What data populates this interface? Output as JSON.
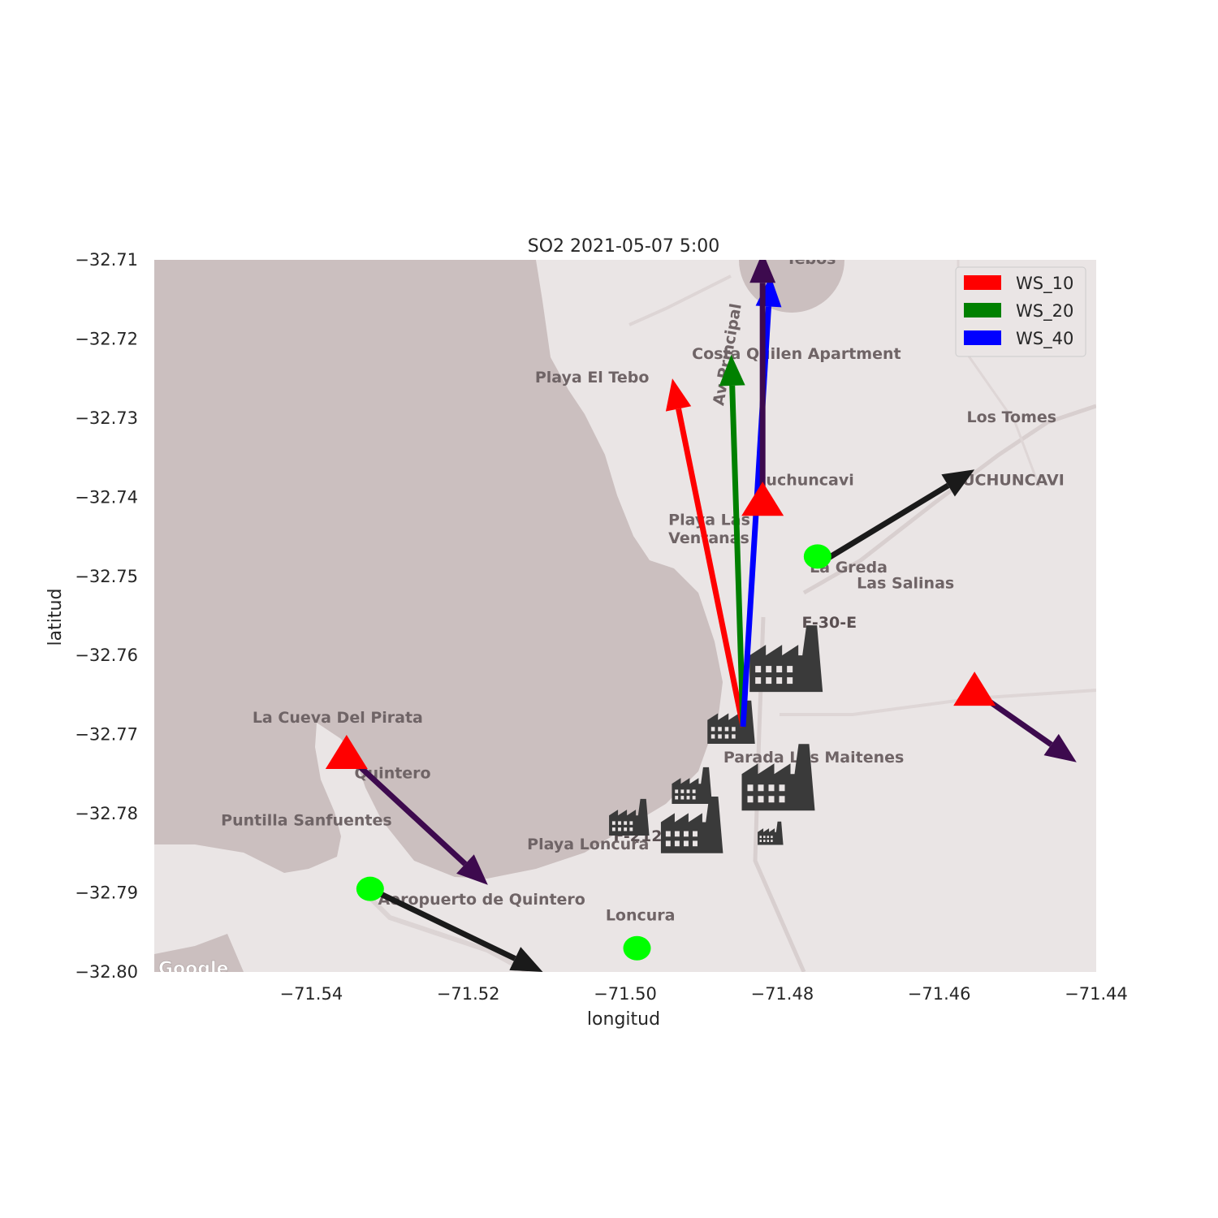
{
  "chart_data": {
    "type": "scatter",
    "title": "SO2 2021-05-07 5:00",
    "xlabel": "longitud",
    "ylabel": "latitud",
    "xlim": [
      -71.56,
      -71.44
    ],
    "ylim": [
      -32.8,
      -32.71
    ],
    "x_ticks": [
      -71.54,
      -71.52,
      -71.5,
      -71.48,
      -71.46,
      -71.44
    ],
    "x_tick_labels": [
      "−71.54",
      "−71.52",
      "−71.50",
      "−71.48",
      "−71.46",
      "−71.44"
    ],
    "y_ticks": [
      -32.71,
      -32.72,
      -32.73,
      -32.74,
      -32.75,
      -32.76,
      -32.77,
      -32.78,
      -32.79,
      -32.8
    ],
    "y_tick_labels": [
      "−32.71",
      "−32.72",
      "−32.73",
      "−32.74",
      "−32.75",
      "−32.76",
      "−32.77",
      "−32.78",
      "−32.79",
      "−32.80"
    ],
    "grid": false,
    "legend": {
      "placement": "top-right",
      "entries": [
        {
          "label": "WS_10",
          "color": "#ff0000"
        },
        {
          "label": "WS_20",
          "color": "#008000"
        },
        {
          "label": "WS_40",
          "color": "#0000ff"
        }
      ]
    },
    "wind_vectors": [
      {
        "series": "WS_10",
        "color": "#ff0000",
        "from": [
          -71.485,
          -32.769
        ],
        "to": [
          -71.494,
          -32.725
        ]
      },
      {
        "series": "WS_20",
        "color": "#008000",
        "from": [
          -71.485,
          -32.769
        ],
        "to": [
          -71.4865,
          -32.722
        ]
      },
      {
        "series": "WS_40",
        "color": "#0000ff",
        "from": [
          -71.485,
          -32.769
        ],
        "to": [
          -71.4815,
          -32.712
        ]
      },
      {
        "series": "",
        "color": "#3d0a4e",
        "from": [
          -71.4825,
          -32.742
        ],
        "to": [
          -71.4825,
          -32.709
        ]
      }
    ],
    "station_vectors": [
      {
        "color": "#3d0a4e",
        "from": [
          -71.5355,
          -32.7725
        ],
        "to": [
          -71.5175,
          -32.789
        ]
      },
      {
        "color": "#3d0a4e",
        "from": [
          -71.4555,
          -32.7645
        ],
        "to": [
          -71.4425,
          -32.7735
        ]
      },
      {
        "color": "#1a1a1a",
        "from": [
          -71.4755,
          -32.7485
        ],
        "to": [
          -71.4555,
          -32.7365
        ]
      },
      {
        "color": "#1a1a1a",
        "from": [
          -71.5325,
          -32.7895
        ],
        "to": [
          -71.5105,
          -32.8
        ]
      }
    ],
    "triangle_stations": [
      {
        "lon": -71.4825,
        "lat": -32.7405,
        "color": "#ff0000"
      },
      {
        "lon": -71.5355,
        "lat": -32.7725,
        "color": "#ff0000"
      },
      {
        "lon": -71.4555,
        "lat": -32.7645,
        "color": "#ff0000"
      }
    ],
    "circle_stations": [
      {
        "lon": -71.4755,
        "lat": -32.7475,
        "color": "#00ff00"
      },
      {
        "lon": -71.5325,
        "lat": -32.7895,
        "color": "#00ff00"
      },
      {
        "lon": -71.4985,
        "lat": -32.797,
        "color": "#00ff00"
      }
    ],
    "factories": [
      {
        "lon": -71.4795,
        "lat": -32.7605,
        "scale": 1.0
      },
      {
        "lon": -71.4865,
        "lat": -32.7685,
        "scale": 0.65
      },
      {
        "lon": -71.4805,
        "lat": -32.7755,
        "scale": 1.0
      },
      {
        "lon": -71.4915,
        "lat": -32.7765,
        "scale": 0.55
      },
      {
        "lon": -71.4995,
        "lat": -32.7805,
        "scale": 0.55
      },
      {
        "lon": -71.4915,
        "lat": -32.7815,
        "scale": 0.85
      },
      {
        "lon": -71.4815,
        "lat": -32.7825,
        "scale": 0.35
      }
    ],
    "basemap": {
      "labels": [
        {
          "text": "Tebos",
          "lon": -71.4795,
          "lat": -32.7105
        },
        {
          "text": "Costa Quilen Apartment",
          "lon": -71.4915,
          "lat": -32.7225
        },
        {
          "text": "Playa El Tebo",
          "lon": -71.5115,
          "lat": -32.7255
        },
        {
          "text": "Av Principal",
          "lon": -71.4875,
          "lat": -32.7285
        },
        {
          "text": "Los Tomes",
          "lon": -71.4565,
          "lat": -32.7305
        },
        {
          "text": "Puchuncavi",
          "lon": -71.4835,
          "lat": -32.7385
        },
        {
          "text": "PUCHUNCAVI",
          "lon": -71.4585,
          "lat": -32.7385
        },
        {
          "text": "Playa Las",
          "lon": -71.4945,
          "lat": -32.7435
        },
        {
          "text": "Ventanas",
          "lon": -71.4945,
          "lat": -32.7458
        },
        {
          "text": "La Greda",
          "lon": -71.4765,
          "lat": -32.7495
        },
        {
          "text": "Las Salinas",
          "lon": -71.4705,
          "lat": -32.7515
        },
        {
          "text": "F-30-E",
          "lon": -71.4775,
          "lat": -32.7565
        },
        {
          "text": "La Cueva Del Pirata",
          "lon": -71.5475,
          "lat": -32.7685
        },
        {
          "text": "Parada Los Maitenes",
          "lon": -71.4875,
          "lat": -32.7735
        },
        {
          "text": "Quintero",
          "lon": -71.5345,
          "lat": -32.7755
        },
        {
          "text": "Puntilla Sanfuentes",
          "lon": -71.5515,
          "lat": -32.7815
        },
        {
          "text": "F-212",
          "lon": -71.5015,
          "lat": -32.7835
        },
        {
          "text": "Playa Loncura",
          "lon": -71.5125,
          "lat": -32.7845
        },
        {
          "text": "Aeropuerto de Quintero",
          "lon": -71.5315,
          "lat": -32.7915
        },
        {
          "text": "Loncura",
          "lon": -71.5025,
          "lat": -32.7935
        }
      ],
      "attribution": "Google"
    }
  }
}
